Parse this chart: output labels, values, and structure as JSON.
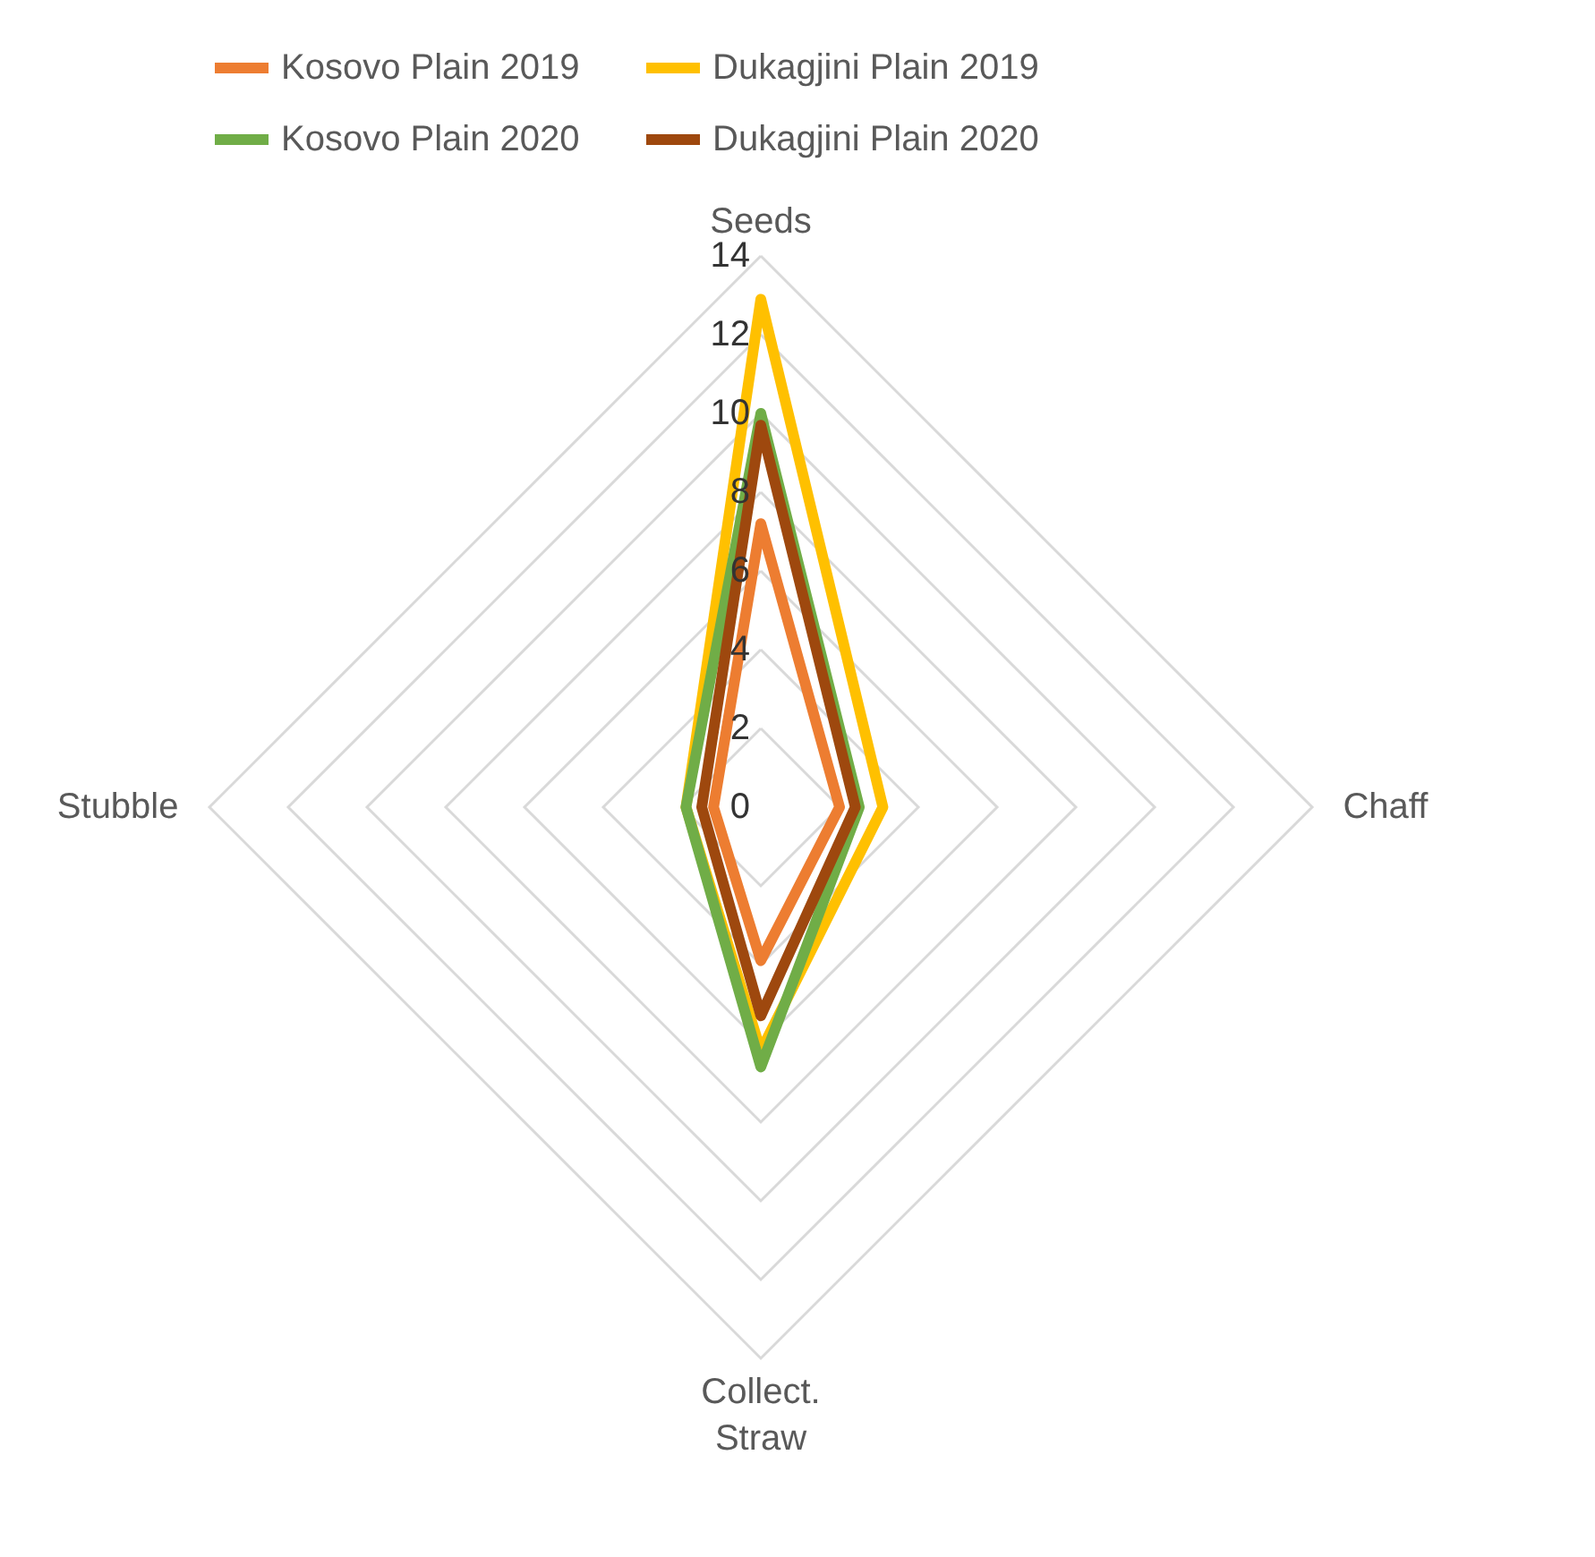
{
  "chart_data": {
    "type": "radar",
    "categories": [
      "Seeds",
      "Chaff",
      "Collect. Straw",
      "Stubble"
    ],
    "series": [
      {
        "name": "Kosovo Plain 2019",
        "color": "#ed7d31",
        "values": [
          7.2,
          2.0,
          3.9,
          1.2
        ]
      },
      {
        "name": "Dukagjini Plain 2019",
        "color": "#ffc000",
        "values": [
          12.9,
          3.1,
          6.2,
          1.9
        ]
      },
      {
        "name": "Kosovo Plain 2020",
        "color": "#70ad47",
        "values": [
          10.0,
          2.5,
          6.6,
          1.9
        ]
      },
      {
        "name": "Dukagjini Plain 2020",
        "color": "#9e480e",
        "values": [
          9.7,
          2.4,
          5.3,
          1.5
        ]
      }
    ],
    "ylim": [
      0,
      14
    ],
    "yticks": [
      0,
      2,
      4,
      6,
      8,
      10,
      12,
      14
    ],
    "grid": true,
    "legend": "top",
    "marker": "none",
    "line_style": "solid"
  }
}
